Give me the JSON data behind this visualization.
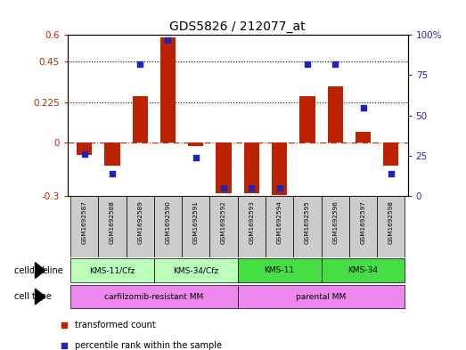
{
  "title": "GDS5826 / 212077_at",
  "samples": [
    "GSM1692587",
    "GSM1692588",
    "GSM1692589",
    "GSM1692590",
    "GSM1692591",
    "GSM1692592",
    "GSM1692593",
    "GSM1692594",
    "GSM1692595",
    "GSM1692596",
    "GSM1692597",
    "GSM1692598"
  ],
  "transformed_count": [
    -0.07,
    -0.13,
    0.26,
    0.585,
    -0.02,
    -0.285,
    -0.285,
    -0.295,
    0.26,
    0.315,
    0.06,
    -0.13
  ],
  "percentile_rank": [
    26,
    14,
    82,
    97,
    24,
    5,
    5,
    5,
    82,
    82,
    55,
    14
  ],
  "ylim_left": [
    -0.3,
    0.6
  ],
  "ylim_right": [
    0,
    100
  ],
  "yticks_left": [
    -0.3,
    0,
    0.225,
    0.45,
    0.6
  ],
  "yticks_right": [
    0,
    25,
    50,
    75,
    100
  ],
  "ytick_labels_left": [
    "-0.3",
    "0",
    "0.225",
    "0.45",
    "0.6"
  ],
  "ytick_labels_right": [
    "0",
    "25",
    "50",
    "75",
    "100%"
  ],
  "hlines": [
    0.225,
    0.45
  ],
  "cell_line_groups": [
    {
      "label": "KMS-11/Cfz",
      "start": 0,
      "end": 2,
      "color": "#bbffbb"
    },
    {
      "label": "KMS-34/Cfz",
      "start": 3,
      "end": 5,
      "color": "#bbffbb"
    },
    {
      "label": "KMS-11",
      "start": 6,
      "end": 8,
      "color": "#44dd44"
    },
    {
      "label": "KMS-34",
      "start": 9,
      "end": 11,
      "color": "#44dd44"
    }
  ],
  "cell_type_groups": [
    {
      "label": "carfilzomib-resistant MM",
      "start": 0,
      "end": 5,
      "color": "#ee88ee"
    },
    {
      "label": "parental MM",
      "start": 6,
      "end": 11,
      "color": "#ee88ee"
    }
  ],
  "bar_color": "#bb2200",
  "dot_color": "#2222bb",
  "zero_line_color": "#bb2200",
  "grid_color": "#000000",
  "bg_color": "#ffffff",
  "plot_bg": "#ffffff",
  "sample_box_color": "#cccccc",
  "legend_items": [
    {
      "label": "transformed count",
      "color": "#bb2200"
    },
    {
      "label": "percentile rank within the sample",
      "color": "#2222bb"
    }
  ]
}
